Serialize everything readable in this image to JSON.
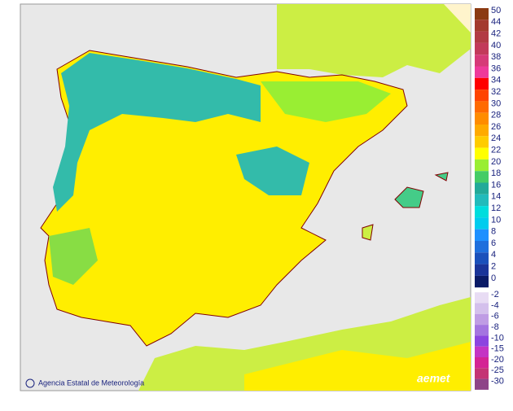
{
  "map": {
    "credit": "Agencia Estatal de Meteorología",
    "logo": "aemet",
    "legend": [
      {
        "value": 50,
        "color": "#8b3a12"
      },
      {
        "value": 44,
        "color": "#a33a2e"
      },
      {
        "value": 42,
        "color": "#b23a44"
      },
      {
        "value": 40,
        "color": "#c23a5a"
      },
      {
        "value": 38,
        "color": "#d63a78"
      },
      {
        "value": 36,
        "color": "#ee3a9a"
      },
      {
        "value": 34,
        "color": "#ff0000"
      },
      {
        "value": 32,
        "color": "#ff4400"
      },
      {
        "value": 30,
        "color": "#ff6a00"
      },
      {
        "value": 28,
        "color": "#ff8c00"
      },
      {
        "value": 26,
        "color": "#ffaa00"
      },
      {
        "value": 24,
        "color": "#ffcc00"
      },
      {
        "value": 22,
        "color": "#ffff00"
      },
      {
        "value": 20,
        "color": "#99ee33"
      },
      {
        "value": 18,
        "color": "#44cc66"
      },
      {
        "value": 16,
        "color": "#22aa99"
      },
      {
        "value": 14,
        "color": "#22bbbb"
      },
      {
        "value": 12,
        "color": "#00dddd"
      },
      {
        "value": 10,
        "color": "#00ccee"
      },
      {
        "value": 8,
        "color": "#1e90ff"
      },
      {
        "value": 6,
        "color": "#1e6fdd"
      },
      {
        "value": 4,
        "color": "#1a50bb"
      },
      {
        "value": 2,
        "color": "#1a3499"
      },
      {
        "value": 0,
        "color": "#0a1a66"
      },
      {
        "value": -2,
        "color": "#e8dcf4"
      },
      {
        "value": -4,
        "color": "#d4c0ec"
      },
      {
        "value": -6,
        "color": "#bf9ce4"
      },
      {
        "value": -8,
        "color": "#a474e0"
      },
      {
        "value": -10,
        "color": "#8c44e0"
      },
      {
        "value": -15,
        "color": "#c434c4"
      },
      {
        "value": -20,
        "color": "#d42494"
      },
      {
        "value": -25,
        "color": "#c43474"
      },
      {
        "value": -30,
        "color": "#8e4488"
      }
    ]
  }
}
